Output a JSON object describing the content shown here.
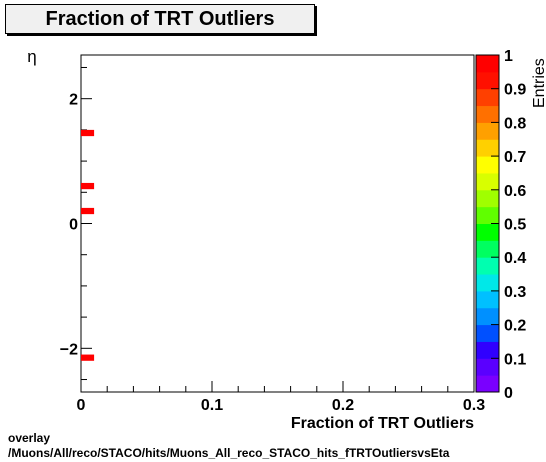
{
  "chart_data": {
    "type": "heatmap",
    "title": "Fraction of TRT Outliers",
    "xlabel": "Fraction of TRT Outliers",
    "ylabel": "η",
    "zlabel": "Entries",
    "xlim": [
      0,
      0.3
    ],
    "ylim": [
      -2.7,
      2.7
    ],
    "zlim": [
      0,
      1
    ],
    "x_ticks": [
      "0",
      "0.1",
      "0.2",
      "0.3"
    ],
    "y_ticks": [
      "−2",
      "0",
      "2"
    ],
    "z_ticks": [
      "0",
      "0.1",
      "0.2",
      "0.3",
      "0.4",
      "0.5",
      "0.6",
      "0.7",
      "0.8",
      "0.9",
      "1"
    ],
    "cells": [
      {
        "x0": 0.0,
        "x1": 0.01,
        "y0": 1.4,
        "y1": 1.5,
        "z": 1
      },
      {
        "x0": 0.0,
        "x1": 0.01,
        "y0": 0.55,
        "y1": 0.65,
        "z": 1
      },
      {
        "x0": 0.0,
        "x1": 0.01,
        "y0": 0.15,
        "y1": 0.25,
        "z": 1
      },
      {
        "x0": 0.0,
        "x1": 0.01,
        "y0": -2.2,
        "y1": -2.1,
        "z": 1
      }
    ],
    "palette": [
      "#7a00ff",
      "#5a00ff",
      "#3000ff",
      "#0050ff",
      "#0090ff",
      "#00c0ff",
      "#00e8e8",
      "#00ffb0",
      "#00ff60",
      "#00ff00",
      "#60ff00",
      "#a0ff00",
      "#d8ff00",
      "#ffff00",
      "#ffd000",
      "#ffa000",
      "#ff7000",
      "#ff4000",
      "#ff1000",
      "#ff0000"
    ]
  },
  "footer": {
    "line1": "overlay",
    "line2": "/Muons/All/reco/STACO/hits/Muons_All_reco_STACO_hits_fTRTOutliersvsEta"
  }
}
